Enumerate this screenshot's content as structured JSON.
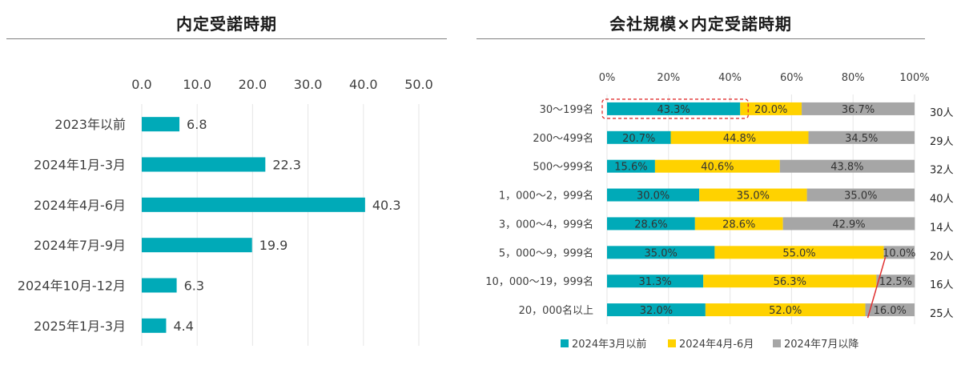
{
  "charts": {
    "left": {
      "title": "内定受諾時期"
    },
    "right": {
      "title": "会社規模×内定受諾時期"
    }
  },
  "chart_data": [
    {
      "type": "bar",
      "orientation": "horizontal",
      "title": "内定受諾時期",
      "categories": [
        "2023年以前",
        "2024年1月-3月",
        "2024年4月-6月",
        "2024年7月-9月",
        "2024年10月-12月",
        "2025年1月-3月"
      ],
      "values": [
        6.8,
        22.3,
        40.3,
        19.9,
        6.3,
        4.4
      ],
      "value_labels": [
        "6.8",
        "22.3",
        "40.3",
        "19.9",
        "6.3",
        "4.4"
      ],
      "xlim": [
        0,
        50
      ],
      "x_ticks": [
        "0.0",
        "10.0",
        "20.0",
        "30.0",
        "40.0",
        "50.0"
      ],
      "x_axis_position": "top",
      "grid": true,
      "color": "#00aab8"
    },
    {
      "type": "bar",
      "orientation": "horizontal",
      "stacked": "percent",
      "title": "会社規模×内定受諾時期",
      "categories": [
        "30〜199名",
        "200〜499名",
        "500〜999名",
        "1，000〜2，999名",
        "3，000〜4，999名",
        "5，000〜9，999名",
        "10，000〜19，999名",
        "20，000名以上"
      ],
      "respondents": [
        "30人",
        "29人",
        "32人",
        "40人",
        "14人",
        "20人",
        "16人",
        "25人"
      ],
      "series": [
        {
          "name": "2024年3月以前",
          "color": "#00aab8",
          "values": [
            43.3,
            20.7,
            15.6,
            30.0,
            28.6,
            35.0,
            31.3,
            32.0
          ],
          "labels": [
            "43.3%",
            "20.7%",
            "15.6%",
            "30.0%",
            "28.6%",
            "35.0%",
            "31.3%",
            "32.0%"
          ]
        },
        {
          "name": "2024年4月-6月",
          "color": "#ffd200",
          "values": [
            20.0,
            44.8,
            40.6,
            35.0,
            28.6,
            55.0,
            56.3,
            52.0
          ],
          "labels": [
            "20.0%",
            "44.8%",
            "40.6%",
            "35.0%",
            "28.6%",
            "55.0%",
            "56.3%",
            "52.0%"
          ]
        },
        {
          "name": "2024年7月以降",
          "color": "#a6a6a6",
          "values": [
            36.7,
            34.5,
            43.8,
            35.0,
            42.9,
            10.0,
            12.5,
            16.0
          ],
          "labels": [
            "36.7%",
            "34.5%",
            "43.8%",
            "35.0%",
            "42.9%",
            "10.0%",
            "12.5%",
            "16.0%"
          ]
        }
      ],
      "xlim": [
        0,
        100
      ],
      "x_ticks": [
        "0%",
        "20%",
        "40%",
        "60%",
        "80%",
        "100%"
      ],
      "x_axis_position": "top",
      "grid": true,
      "legend": "bottom",
      "annotations": [
        {
          "type": "dashed-box",
          "color": "#e03030",
          "target": "30〜199名 / 2024年3月以前"
        },
        {
          "type": "line",
          "color": "#e03030",
          "target": "2024年7月以降 segments of 5，000〜9，999名 through 20，000名以上"
        }
      ]
    }
  ]
}
